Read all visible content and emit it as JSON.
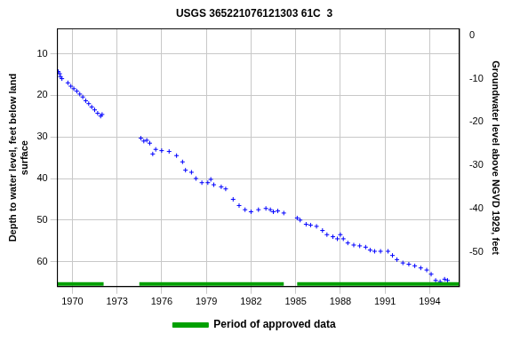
{
  "chart_data": {
    "type": "scatter",
    "title": "USGS 365221076121303 61C  3",
    "y_label": [
      "Depth to water level, feet below land",
      "surface"
    ],
    "y2_label": "Groundwater level above NGVD 1929, feet",
    "xlim": [
      1969.0,
      1996.0
    ],
    "xticks": [
      1970,
      1973,
      1976,
      1979,
      1982,
      1985,
      1988,
      1991,
      1994
    ],
    "ylim": [
      4,
      66
    ],
    "yticks": [
      10,
      20,
      30,
      40,
      50,
      60
    ],
    "y2lim": [
      -58,
      1.5
    ],
    "y2ticks": [
      0,
      -10,
      -20,
      -30,
      -40,
      -50
    ],
    "grid": true,
    "legend": "bottom",
    "series": [
      {
        "color": "#0000ff",
        "marker": "plus",
        "x": [
          1969.05,
          1969.15,
          1969.2,
          1969.3,
          1969.7,
          1969.9,
          1970.1,
          1970.3,
          1970.5,
          1970.7,
          1970.9,
          1971.1,
          1971.3,
          1971.5,
          1971.7,
          1971.9,
          1972.0,
          1974.6,
          1974.8,
          1975.0,
          1975.2,
          1975.4,
          1975.6,
          1976.0,
          1976.5,
          1977.0,
          1977.4,
          1977.6,
          1978.0,
          1978.3,
          1978.7,
          1979.1,
          1979.3,
          1979.5,
          1980.0,
          1980.3,
          1980.8,
          1981.2,
          1981.6,
          1982.0,
          1982.5,
          1983.0,
          1983.3,
          1983.5,
          1983.8,
          1984.2,
          1985.1,
          1985.3,
          1985.7,
          1986.0,
          1986.4,
          1986.8,
          1987.1,
          1987.5,
          1987.8,
          1988.0,
          1988.2,
          1988.5,
          1988.9,
          1989.3,
          1989.7,
          1990.0,
          1990.3,
          1990.7,
          1991.2,
          1991.5,
          1991.8,
          1992.2,
          1992.6,
          1993.0,
          1993.4,
          1993.8,
          1994.1,
          1994.4,
          1994.7,
          1995.0,
          1995.2
        ],
        "values": [
          14.3,
          14.8,
          15.5,
          16.0,
          17.0,
          17.8,
          18.4,
          19.0,
          19.7,
          20.4,
          21.3,
          22.0,
          22.8,
          23.5,
          24.3,
          25.0,
          24.6,
          30.3,
          31.0,
          30.8,
          31.5,
          34.1,
          33.0,
          33.3,
          33.5,
          34.5,
          36.0,
          38.0,
          38.5,
          40.0,
          41.0,
          41.0,
          40.2,
          41.5,
          42.0,
          42.5,
          45.0,
          46.5,
          47.5,
          48.0,
          47.5,
          47.2,
          47.5,
          48.0,
          47.8,
          48.3,
          49.5,
          50.0,
          51.0,
          51.2,
          51.5,
          52.5,
          53.5,
          54.0,
          54.5,
          53.5,
          54.5,
          55.5,
          56.0,
          56.2,
          56.5,
          57.2,
          57.5,
          57.5,
          57.5,
          58.5,
          59.5,
          60.3,
          60.6,
          61.0,
          61.5,
          62.0,
          63.0,
          64.5,
          64.8,
          64.2,
          64.5
        ]
      },
      {
        "name": "Period of approved data",
        "color": "#00a000",
        "type": "period",
        "periods": [
          [
            1969.0,
            1972.1
          ],
          [
            1974.5,
            1984.2
          ],
          [
            1985.1,
            1996.0
          ]
        ]
      }
    ]
  }
}
